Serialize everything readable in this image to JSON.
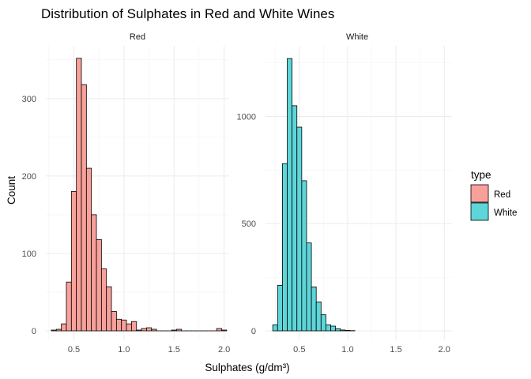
{
  "chart_data": {
    "type": "bar",
    "title": "Distribution of Sulphates in Red and White Wines",
    "xlabel": "Sulphates (g/dm³)",
    "ylabel": "Count",
    "legend": {
      "title": "type",
      "placement": "right",
      "entries": [
        {
          "label": "Red",
          "color": "#F8A19A"
        },
        {
          "label": "White",
          "color": "#5ED6D9"
        }
      ]
    },
    "grid": true,
    "bin_width": 0.05,
    "panels": [
      {
        "name": "Red",
        "color": "#F8A19A",
        "xlim": [
          0.22,
          2.05
        ],
        "ylim": [
          0,
          360
        ],
        "x_ticks": [
          0.5,
          1.0,
          1.5,
          2.0
        ],
        "x_tick_labels": [
          "0.5",
          "1.0",
          "1.5",
          "2.0"
        ],
        "y_ticks": [
          0,
          100,
          200,
          300
        ],
        "y_tick_labels": [
          "0",
          "100",
          "200",
          "300"
        ],
        "bins": [
          {
            "x": 0.3,
            "count": 1
          },
          {
            "x": 0.35,
            "count": 2
          },
          {
            "x": 0.4,
            "count": 9
          },
          {
            "x": 0.45,
            "count": 63
          },
          {
            "x": 0.5,
            "count": 180
          },
          {
            "x": 0.55,
            "count": 352
          },
          {
            "x": 0.6,
            "count": 318
          },
          {
            "x": 0.65,
            "count": 210
          },
          {
            "x": 0.7,
            "count": 150
          },
          {
            "x": 0.75,
            "count": 118
          },
          {
            "x": 0.8,
            "count": 80
          },
          {
            "x": 0.85,
            "count": 57
          },
          {
            "x": 0.9,
            "count": 25
          },
          {
            "x": 0.95,
            "count": 15
          },
          {
            "x": 1.0,
            "count": 14
          },
          {
            "x": 1.05,
            "count": 9
          },
          {
            "x": 1.1,
            "count": 12
          },
          {
            "x": 1.15,
            "count": 1
          },
          {
            "x": 1.2,
            "count": 3
          },
          {
            "x": 1.25,
            "count": 4
          },
          {
            "x": 1.3,
            "count": 2
          },
          {
            "x": 1.35,
            "count": 0
          },
          {
            "x": 1.4,
            "count": 0
          },
          {
            "x": 1.45,
            "count": 0
          },
          {
            "x": 1.5,
            "count": 1
          },
          {
            "x": 1.55,
            "count": 2
          },
          {
            "x": 1.6,
            "count": 0
          },
          {
            "x": 1.65,
            "count": 0
          },
          {
            "x": 1.7,
            "count": 0
          },
          {
            "x": 1.75,
            "count": 0
          },
          {
            "x": 1.8,
            "count": 0
          },
          {
            "x": 1.85,
            "count": 0
          },
          {
            "x": 1.9,
            "count": 0
          },
          {
            "x": 1.95,
            "count": 3
          },
          {
            "x": 2.0,
            "count": 1
          }
        ]
      },
      {
        "name": "White",
        "color": "#5ED6D9",
        "xlim": [
          0.15,
          2.08
        ],
        "ylim": [
          0,
          1300
        ],
        "x_ticks": [
          0.5,
          1.0,
          1.5,
          2.0
        ],
        "x_tick_labels": [
          "0.5",
          "1.0",
          "1.5",
          "2.0"
        ],
        "y_ticks": [
          0,
          500,
          1000
        ],
        "y_tick_labels": [
          "0",
          "500",
          "1000"
        ],
        "bins": [
          {
            "x": 0.25,
            "count": 28
          },
          {
            "x": 0.3,
            "count": 212
          },
          {
            "x": 0.35,
            "count": 780
          },
          {
            "x": 0.4,
            "count": 1270
          },
          {
            "x": 0.45,
            "count": 1050
          },
          {
            "x": 0.5,
            "count": 950
          },
          {
            "x": 0.55,
            "count": 700
          },
          {
            "x": 0.6,
            "count": 410
          },
          {
            "x": 0.65,
            "count": 205
          },
          {
            "x": 0.7,
            "count": 135
          },
          {
            "x": 0.75,
            "count": 75
          },
          {
            "x": 0.8,
            "count": 28
          },
          {
            "x": 0.85,
            "count": 22
          },
          {
            "x": 0.9,
            "count": 10
          },
          {
            "x": 0.95,
            "count": 4
          },
          {
            "x": 1.0,
            "count": 2
          },
          {
            "x": 1.05,
            "count": 1
          }
        ]
      }
    ]
  }
}
